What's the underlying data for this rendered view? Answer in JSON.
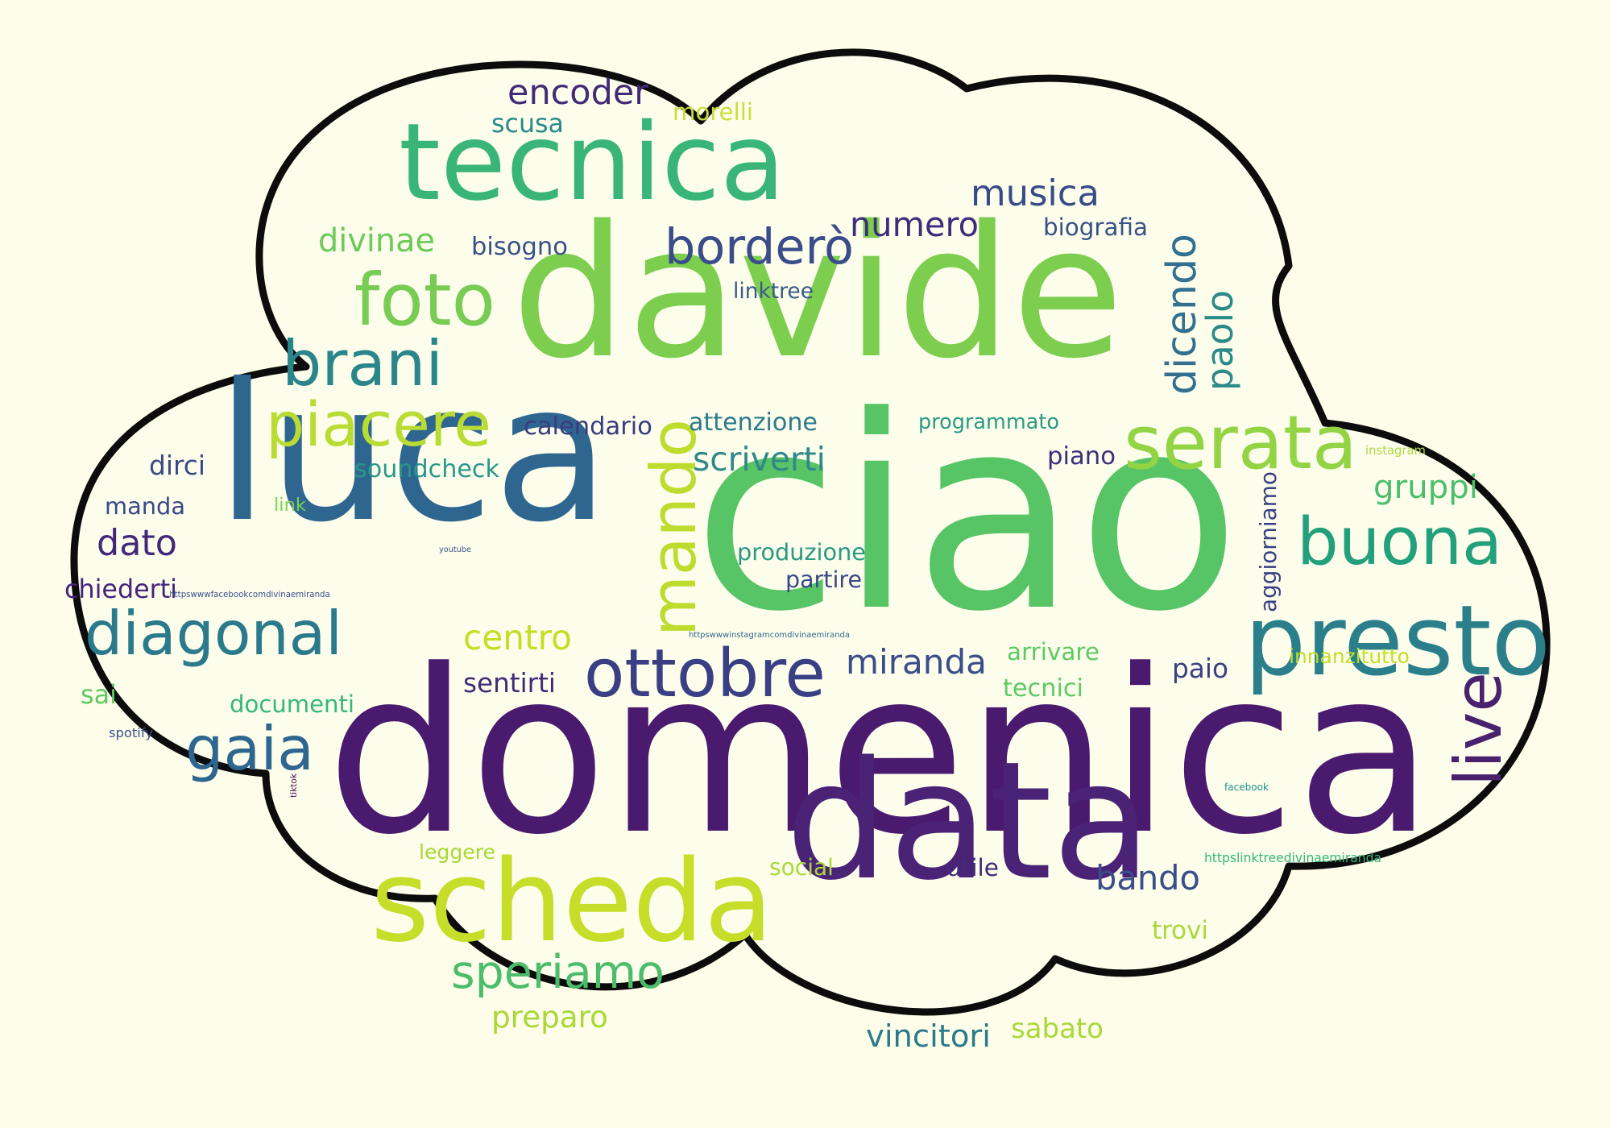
{
  "colors": {
    "background": "#fdfde9",
    "cloud_fill": "#fcfdeb",
    "cloud_stroke": "#0c0c0c",
    "palette": [
      "#440154",
      "#3b528b",
      "#31688e",
      "#21918c",
      "#35b779",
      "#5ec962",
      "#7ad151",
      "#c2df23"
    ]
  },
  "words": [
    {
      "text": "domenica",
      "color": "#4a1a6e"
    },
    {
      "text": "ciao",
      "color": "#57c465"
    },
    {
      "text": "davide",
      "color": "#7dce4f"
    },
    {
      "text": "luca",
      "color": "#2f6690"
    },
    {
      "text": "data",
      "color": "#4a2276"
    },
    {
      "text": "tecnica",
      "color": "#3ab578"
    },
    {
      "text": "scheda",
      "color": "#c6dd2a"
    },
    {
      "text": "presto",
      "color": "#2a7f8b"
    },
    {
      "text": "mando",
      "color": "#bedc2d"
    },
    {
      "text": "serata",
      "color": "#93d445"
    },
    {
      "text": "buona",
      "color": "#22a07c"
    },
    {
      "text": "ottobre",
      "color": "#3a3f83"
    },
    {
      "text": "diagonal",
      "color": "#2a7a8c"
    },
    {
      "text": "piacere",
      "color": "#b8dc33"
    },
    {
      "text": "foto",
      "color": "#78cc54"
    },
    {
      "text": "brani",
      "color": "#2a868a"
    },
    {
      "text": "borderò",
      "color": "#3a4d8a"
    },
    {
      "text": "live",
      "color": "#49226f"
    },
    {
      "text": "gaia",
      "color": "#2f6690"
    },
    {
      "text": "speriamo",
      "color": "#4cbd6b"
    },
    {
      "text": "encoder",
      "color": "#432a78"
    },
    {
      "text": "musica",
      "color": "#394a88"
    },
    {
      "text": "numero",
      "color": "#3d2d7b"
    },
    {
      "text": "divinae",
      "color": "#6cc95a"
    },
    {
      "text": "dicendo",
      "color": "#327090"
    },
    {
      "text": "paolo",
      "color": "#2a8a8a"
    },
    {
      "text": "biografia",
      "color": "#3a5088"
    },
    {
      "text": "bisogno",
      "color": "#3b4f89"
    },
    {
      "text": "linktree",
      "color": "#3a5a8c"
    },
    {
      "text": "morelli",
      "color": "#c8df3a"
    },
    {
      "text": "scusa",
      "color": "#2a8a8a"
    },
    {
      "text": "calendario",
      "color": "#3a3b80"
    },
    {
      "text": "attenzione",
      "color": "#2b7a8c"
    },
    {
      "text": "programmato",
      "color": "#2a9a84"
    },
    {
      "text": "soundcheck",
      "color": "#27988a"
    },
    {
      "text": "scriverti",
      "color": "#30888a"
    },
    {
      "text": "piano",
      "color": "#3a2f7a"
    },
    {
      "text": "gruppi",
      "color": "#4cbd6b"
    },
    {
      "text": "instagram",
      "color": "#b0d848"
    },
    {
      "text": "dirci",
      "color": "#3a4888"
    },
    {
      "text": "manda",
      "color": "#3a4888"
    },
    {
      "text": "link",
      "color": "#7ad151"
    },
    {
      "text": "dato",
      "color": "#43287a"
    },
    {
      "text": "chiederti",
      "color": "#46237a"
    },
    {
      "text": "youtube",
      "color": "#3b528b"
    },
    {
      "text": "httpswwwfacebookcomdivinaemiranda",
      "color": "#3b528b"
    },
    {
      "text": "produzione",
      "color": "#2a9a84"
    },
    {
      "text": "partire",
      "color": "#3a4888"
    },
    {
      "text": "aggiorniamo",
      "color": "#3a3f83"
    },
    {
      "text": "httpswwwinstagramcomdivinaemiranda",
      "color": "#31688e"
    },
    {
      "text": "centro",
      "color": "#c2df23"
    },
    {
      "text": "miranda",
      "color": "#3a4d8a"
    },
    {
      "text": "arrivare",
      "color": "#5ec962"
    },
    {
      "text": "paio",
      "color": "#3a3f83"
    },
    {
      "text": "innanzitutto",
      "color": "#c2df23"
    },
    {
      "text": "sentirti",
      "color": "#432a78"
    },
    {
      "text": "tecnici",
      "color": "#5ec962"
    },
    {
      "text": "sai",
      "color": "#5ec962"
    },
    {
      "text": "documenti",
      "color": "#35b779"
    },
    {
      "text": "spotify",
      "color": "#3b528b"
    },
    {
      "text": "tiktok",
      "color": "#440154"
    },
    {
      "text": "facebook",
      "color": "#21918c"
    },
    {
      "text": "leggere",
      "color": "#a9d83a"
    },
    {
      "text": "social",
      "color": "#a9d83a"
    },
    {
      "text": "utile",
      "color": "#432a78"
    },
    {
      "text": "bando",
      "color": "#3a4d8a"
    },
    {
      "text": "httpslinktreedivinaemiranda",
      "color": "#35b779"
    },
    {
      "text": "trovi",
      "color": "#a9d83a"
    },
    {
      "text": "preparo",
      "color": "#a9d83a"
    },
    {
      "text": "vincitori",
      "color": "#2a7a8c"
    },
    {
      "text": "sabato",
      "color": "#a9d83a"
    }
  ]
}
